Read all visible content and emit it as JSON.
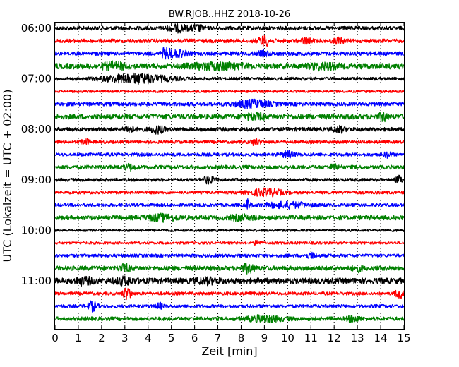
{
  "chart_data": {
    "type": "line",
    "title": "BW.RJOB..HHZ 2018-10-26",
    "xlabel": "Zeit  [min]",
    "ylabel": "UTC (Lokalzeit = UTC + 02:00)",
    "xlim": [
      0,
      15
    ],
    "x_ticks": [
      "0",
      "1",
      "2",
      "3",
      "4",
      "5",
      "6",
      "7",
      "8",
      "9",
      "10",
      "11",
      "12",
      "13",
      "14",
      "15"
    ],
    "y_ticks": [
      "06:00",
      "07:00",
      "08:00",
      "09:00",
      "10:00",
      "11:00"
    ],
    "trace_interval_minutes": 15,
    "first_trace": "06:00",
    "trace_colors": [
      "#000000",
      "#ff0000",
      "#0000ff",
      "#008000"
    ],
    "vertical_grid": true,
    "traces": [
      {
        "start": "06:00",
        "color": "#000000",
        "amplitude": 0.3,
        "events": [
          [
            5.3,
            0.8,
            0.5
          ],
          [
            6.1,
            0.6,
            0.4
          ]
        ]
      },
      {
        "start": "06:15",
        "color": "#ff0000",
        "amplitude": 0.3,
        "events": [
          [
            9.0,
            0.5,
            0.7
          ],
          [
            10.8,
            0.4,
            0.4
          ],
          [
            12.2,
            0.4,
            0.4
          ]
        ]
      },
      {
        "start": "06:30",
        "color": "#0000ff",
        "amplitude": 0.3,
        "events": [
          [
            4.8,
            0.3,
            1.6
          ],
          [
            5.3,
            0.8,
            0.4
          ],
          [
            9.0,
            0.6,
            0.3
          ]
        ]
      },
      {
        "start": "06:45",
        "color": "#008000",
        "amplitude": 0.45,
        "events": [
          [
            2.5,
            1.0,
            0.4
          ],
          [
            7.0,
            2.0,
            0.4
          ],
          [
            11.5,
            1.0,
            0.4
          ]
        ]
      },
      {
        "start": "07:00",
        "color": "#000000",
        "amplitude": 0.25,
        "events": [
          [
            3.5,
            2.6,
            0.7
          ]
        ]
      },
      {
        "start": "07:15",
        "color": "#ff0000",
        "amplitude": 0.2,
        "events": []
      },
      {
        "start": "07:30",
        "color": "#0000ff",
        "amplitude": 0.3,
        "events": [
          [
            8.5,
            1.5,
            0.5
          ]
        ]
      },
      {
        "start": "07:45",
        "color": "#008000",
        "amplitude": 0.4,
        "events": [
          [
            8.6,
            0.8,
            0.4
          ],
          [
            14.1,
            0.3,
            0.6
          ]
        ]
      },
      {
        "start": "08:00",
        "color": "#000000",
        "amplitude": 0.3,
        "events": [
          [
            3.2,
            0.4,
            0.5
          ],
          [
            4.4,
            0.6,
            0.5
          ],
          [
            12.2,
            0.5,
            0.4
          ]
        ]
      },
      {
        "start": "08:15",
        "color": "#ff0000",
        "amplitude": 0.25,
        "events": [
          [
            1.3,
            0.3,
            0.5
          ],
          [
            8.6,
            0.4,
            0.4
          ]
        ]
      },
      {
        "start": "08:30",
        "color": "#0000ff",
        "amplitude": 0.25,
        "events": [
          [
            10.0,
            0.5,
            0.5
          ],
          [
            14.3,
            0.3,
            0.4
          ]
        ]
      },
      {
        "start": "08:45",
        "color": "#008000",
        "amplitude": 0.3,
        "events": [
          [
            3.2,
            0.4,
            0.4
          ],
          [
            12.0,
            0.5,
            0.3
          ]
        ]
      },
      {
        "start": "09:00",
        "color": "#000000",
        "amplitude": 0.25,
        "events": [
          [
            6.6,
            0.5,
            0.5
          ],
          [
            14.8,
            0.3,
            0.5
          ]
        ]
      },
      {
        "start": "09:15",
        "color": "#ff0000",
        "amplitude": 0.25,
        "events": [
          [
            9.1,
            1.4,
            0.5
          ]
        ]
      },
      {
        "start": "09:30",
        "color": "#0000ff",
        "amplitude": 0.25,
        "events": [
          [
            8.3,
            0.2,
            1.0
          ],
          [
            10.0,
            2.0,
            0.4
          ]
        ]
      },
      {
        "start": "09:45",
        "color": "#008000",
        "amplitude": 0.35,
        "events": [
          [
            4.6,
            1.5,
            0.4
          ],
          [
            8.0,
            1.0,
            0.3
          ]
        ]
      },
      {
        "start": "10:00",
        "color": "#000000",
        "amplitude": 0.2,
        "events": []
      },
      {
        "start": "10:15",
        "color": "#ff0000",
        "amplitude": 0.2,
        "events": [
          [
            8.7,
            0.3,
            0.3
          ]
        ]
      },
      {
        "start": "10:30",
        "color": "#0000ff",
        "amplitude": 0.25,
        "events": [
          [
            11.0,
            0.4,
            0.4
          ]
        ]
      },
      {
        "start": "10:45",
        "color": "#008000",
        "amplitude": 0.35,
        "events": [
          [
            3.0,
            0.5,
            0.5
          ],
          [
            8.3,
            0.5,
            0.6
          ],
          [
            13.0,
            0.4,
            0.4
          ]
        ]
      },
      {
        "start": "11:00",
        "color": "#000000",
        "amplitude": 0.45,
        "events": [
          [
            1.2,
            0.8,
            0.4
          ],
          [
            3.0,
            0.8,
            0.4
          ],
          [
            6.5,
            1.0,
            0.3
          ]
        ]
      },
      {
        "start": "11:15",
        "color": "#ff0000",
        "amplitude": 0.25,
        "events": [
          [
            3.1,
            0.3,
            1.4
          ],
          [
            14.8,
            0.3,
            0.8
          ]
        ]
      },
      {
        "start": "11:30",
        "color": "#0000ff",
        "amplitude": 0.25,
        "events": [
          [
            1.6,
            0.4,
            0.7
          ],
          [
            4.5,
            0.3,
            0.4
          ]
        ]
      },
      {
        "start": "11:45",
        "color": "#008000",
        "amplitude": 0.3,
        "events": [
          [
            9.0,
            1.5,
            0.4
          ],
          [
            12.8,
            0.5,
            0.4
          ]
        ]
      }
    ]
  }
}
